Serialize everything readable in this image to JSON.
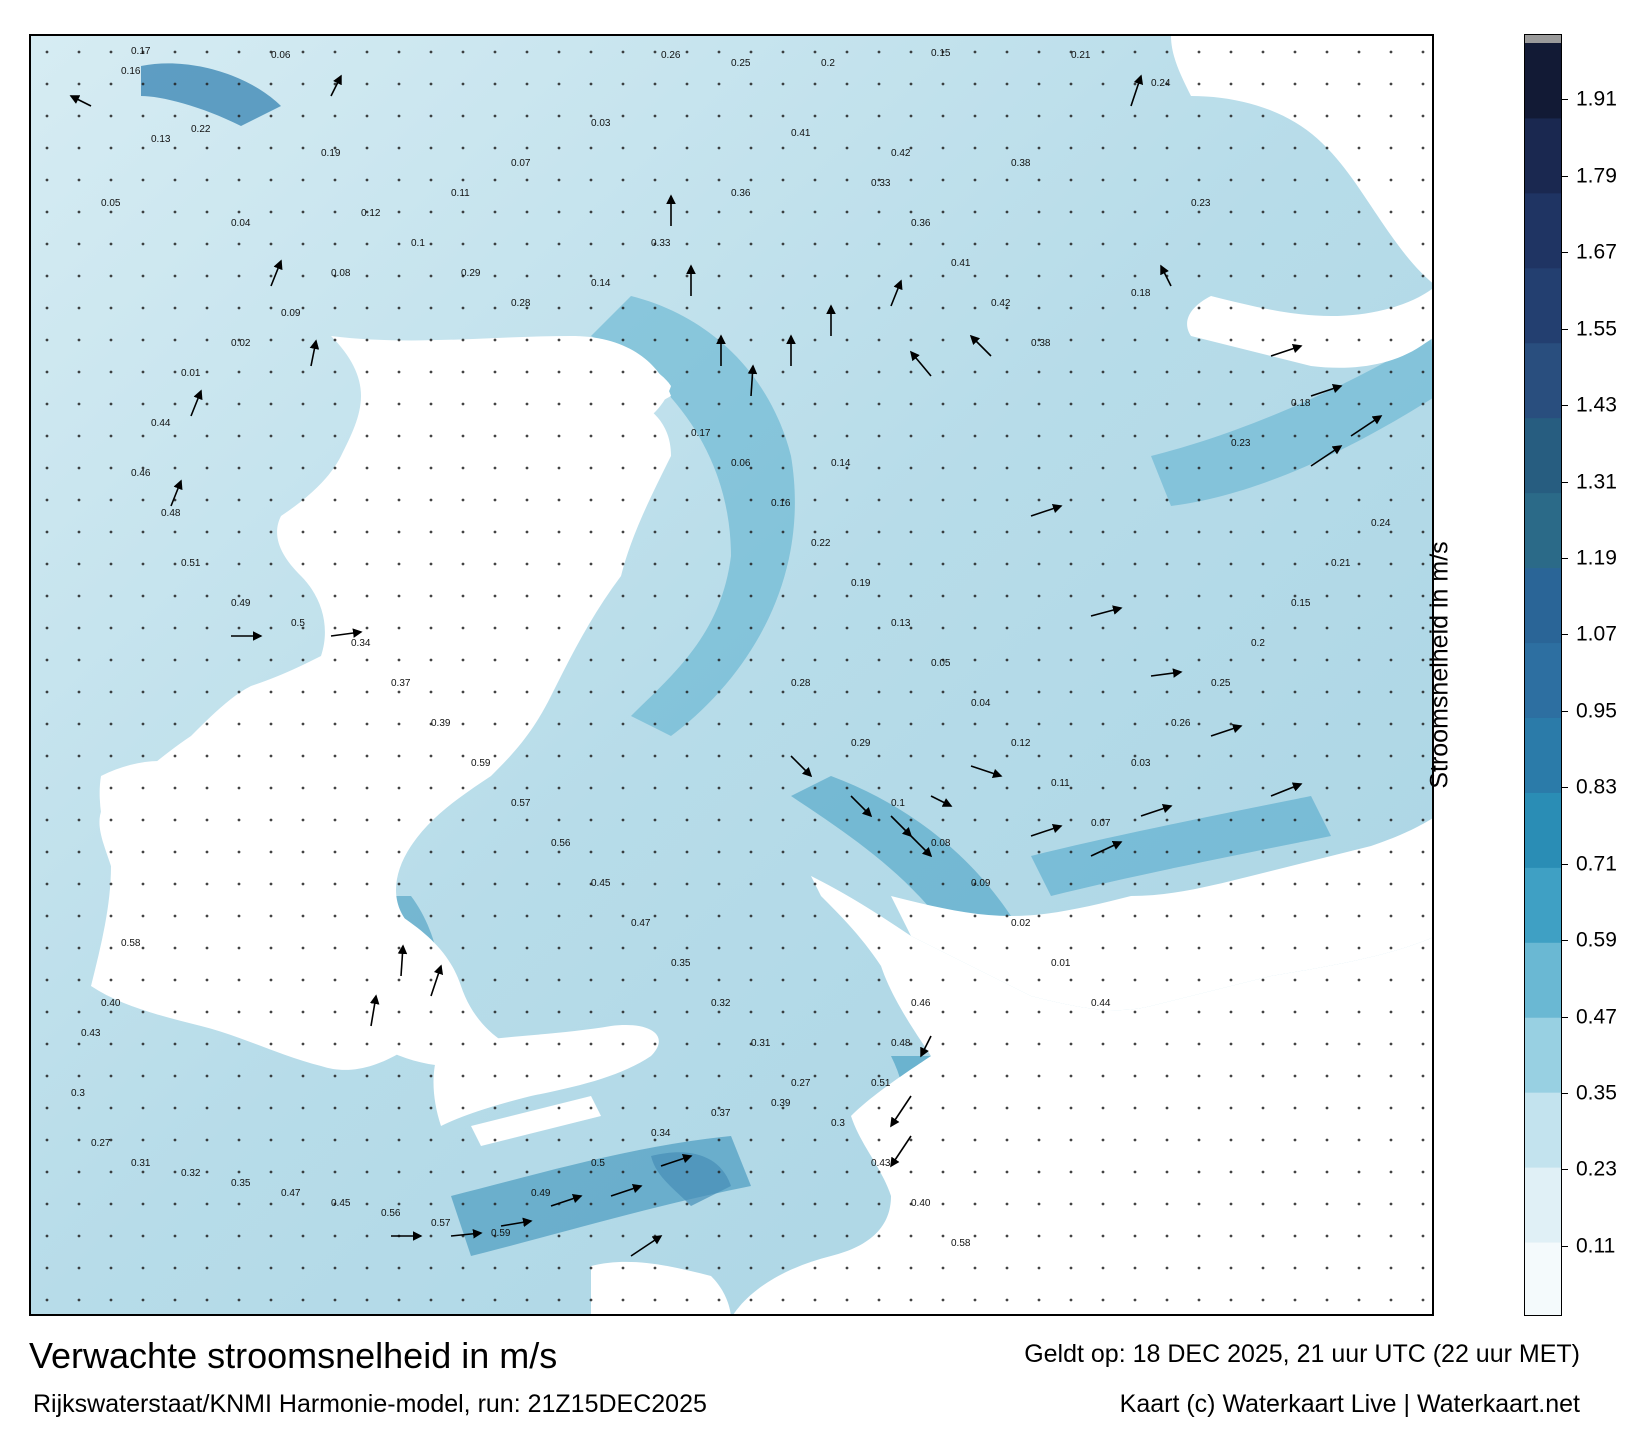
{
  "map": {
    "title": "Verwachte stroomsnelheid in m/s",
    "subtitle": "Rijkswaterstaat/KNMI Harmonie-model, run: 21Z15DEC2025",
    "valid_time": "Geldt op: 18 DEC 2025, 21 uur UTC (22 uur MET)",
    "credit": "Kaart (c) Waterkaart Live | Waterkaart.net",
    "colors": {
      "land": "#ffffff",
      "frame": "#000000",
      "arrow": "#000000"
    },
    "sample_labels": [
      {
        "text": "0.17"
      },
      {
        "text": "0.06"
      },
      {
        "text": "0.16"
      },
      {
        "text": "0.22"
      },
      {
        "text": "0.19"
      },
      {
        "text": "0.13"
      },
      {
        "text": "0.05"
      },
      {
        "text": "0.04"
      },
      {
        "text": "0.12"
      },
      {
        "text": "0.11"
      },
      {
        "text": "0.07"
      },
      {
        "text": "0.03"
      },
      {
        "text": "0.26"
      },
      {
        "text": "0.25"
      },
      {
        "text": "0.2"
      },
      {
        "text": "0.15"
      },
      {
        "text": "0.21"
      },
      {
        "text": "0.24"
      },
      {
        "text": "0.23"
      },
      {
        "text": "0.18"
      },
      {
        "text": "0.38"
      },
      {
        "text": "0.42"
      },
      {
        "text": "0.41"
      },
      {
        "text": "0.36"
      },
      {
        "text": "0.33"
      },
      {
        "text": "0.14"
      },
      {
        "text": "0.28"
      },
      {
        "text": "0.29"
      },
      {
        "text": "0.1"
      },
      {
        "text": "0.08"
      },
      {
        "text": "0.09"
      },
      {
        "text": "0.02"
      },
      {
        "text": "0.01"
      },
      {
        "text": "0.44"
      },
      {
        "text": "0.46"
      },
      {
        "text": "0.48"
      },
      {
        "text": "0.51"
      },
      {
        "text": "0.49"
      },
      {
        "text": "0.5"
      },
      {
        "text": "0.34"
      },
      {
        "text": "0.37"
      },
      {
        "text": "0.39"
      },
      {
        "text": "0.59"
      },
      {
        "text": "0.57"
      },
      {
        "text": "0.56"
      },
      {
        "text": "0.45"
      },
      {
        "text": "0.47"
      },
      {
        "text": "0.35"
      },
      {
        "text": "0.32"
      },
      {
        "text": "0.31"
      },
      {
        "text": "0.27"
      },
      {
        "text": "0.3"
      },
      {
        "text": "0.43"
      },
      {
        "text": "0.40"
      },
      {
        "text": "0.58"
      }
    ]
  },
  "colorbar": {
    "label": "Stroomsnelheid in m/s",
    "ticks": [
      "0.11",
      "0.23",
      "0.35",
      "0.47",
      "0.59",
      "0.71",
      "0.83",
      "0.95",
      "1.07",
      "1.19",
      "1.31",
      "1.43",
      "1.55",
      "1.67",
      "1.79",
      "1.91"
    ],
    "colors": [
      "#f4fafc",
      "#e0f0f6",
      "#c3e3ee",
      "#98d0e2",
      "#6ab8d3",
      "#3fa0c4",
      "#2a8db5",
      "#2b7ba9",
      "#2d6fa1",
      "#2a6597",
      "#2b6a88",
      "#275d80",
      "#294e7e",
      "#233f70",
      "#1f3463",
      "#1a2850",
      "#121a35"
    ],
    "top_cap_color": "#9a9a9a",
    "value_min": 0.0,
    "value_max": 2.0
  }
}
